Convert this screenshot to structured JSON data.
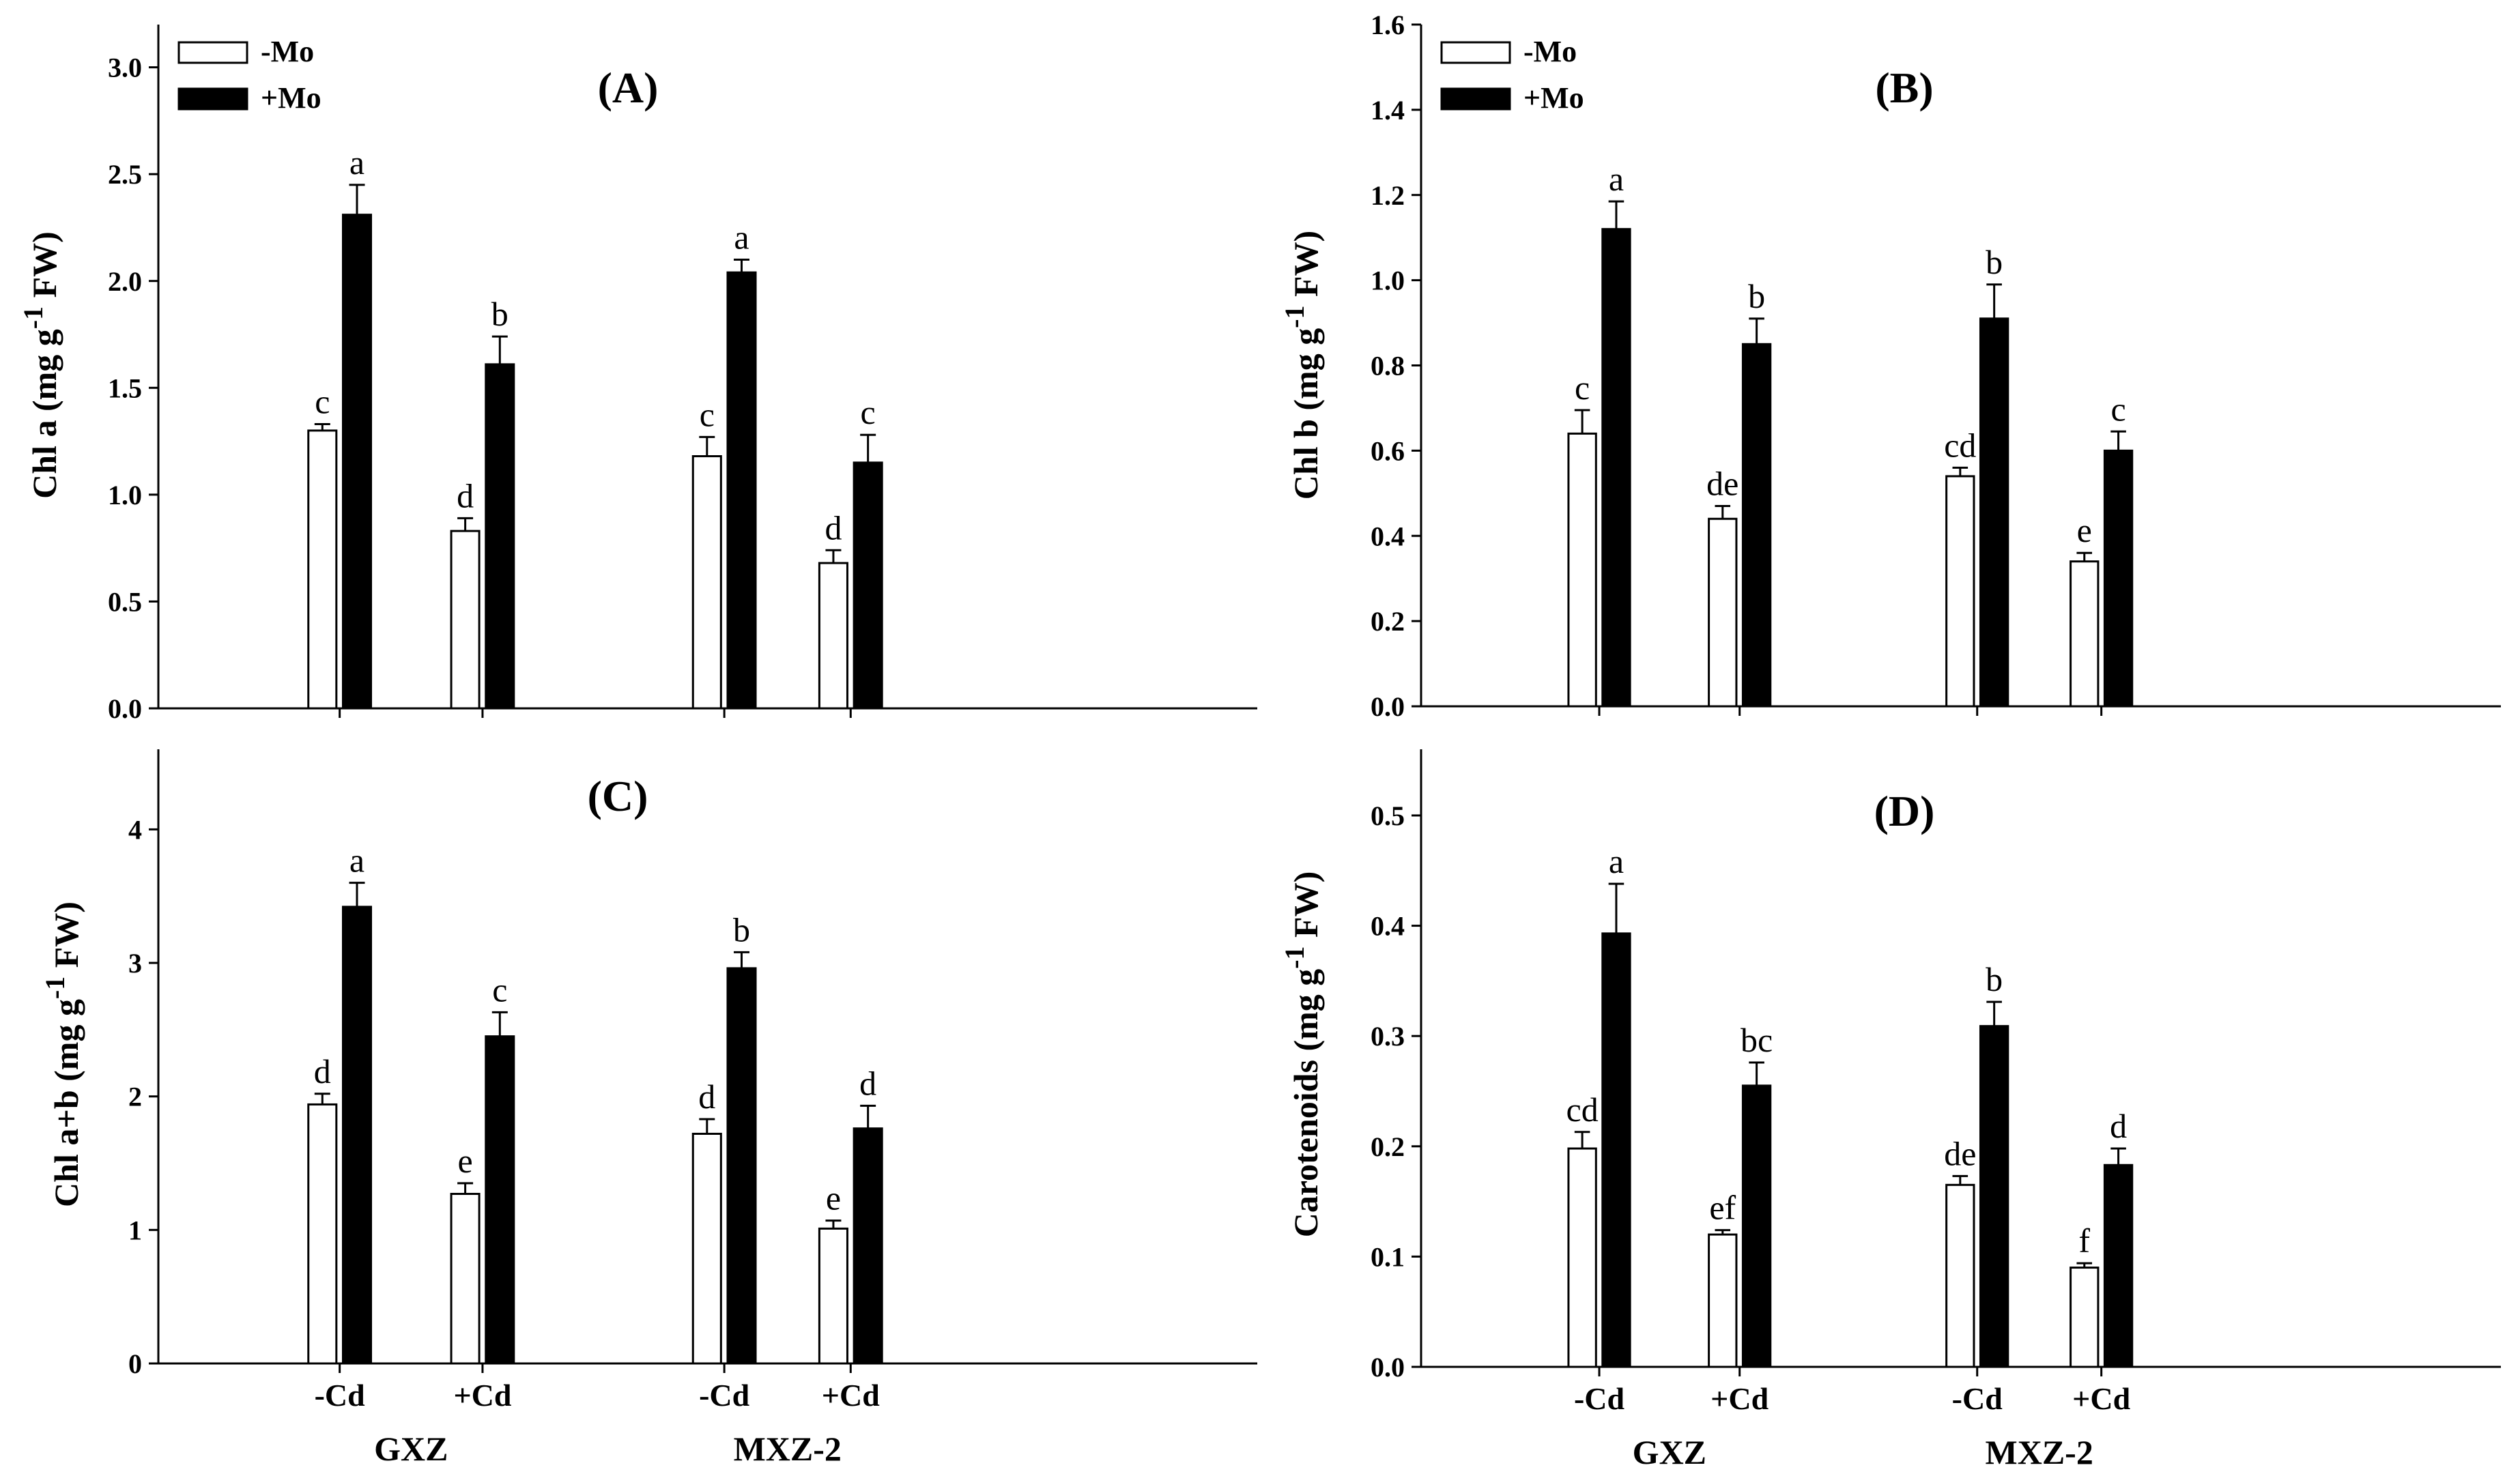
{
  "figure": {
    "background": "#ffffff",
    "bar_empty": "#ffffff",
    "bar_filled": "#000000",
    "stroke": "#000000"
  },
  "chart_data": [
    {
      "type": "bar",
      "title": "(A)",
      "ylabel_main": "Chl a (mg g",
      "ylabel_sup": "-1",
      "ylabel_tail": " FW)",
      "ylim": [
        0,
        3.2
      ],
      "yticks": [
        "0.0",
        "0.5",
        "1.0",
        "1.5",
        "2.0",
        "2.5",
        "3.0"
      ],
      "ytick_values": [
        0,
        0.5,
        1.0,
        1.5,
        2.0,
        2.5,
        3.0
      ],
      "categories": [
        "-Cd",
        "+Cd",
        "-Cd",
        "+Cd"
      ],
      "show_category_labels": false,
      "groups": [
        "GXZ",
        "MXZ-2"
      ],
      "show_group_labels": false,
      "legend": [
        "-Mo",
        "+Mo"
      ],
      "show_legend": true,
      "series": [
        {
          "name": "-Mo",
          "values": [
            1.3,
            0.83,
            1.18,
            0.68
          ],
          "errors": [
            0.03,
            0.06,
            0.09,
            0.06
          ],
          "letters": [
            "c",
            "d",
            "c",
            "d"
          ]
        },
        {
          "name": "+Mo",
          "values": [
            2.31,
            1.61,
            2.04,
            1.15
          ],
          "errors": [
            0.14,
            0.13,
            0.06,
            0.13
          ],
          "letters": [
            "a",
            "b",
            "a",
            "c"
          ]
        }
      ]
    },
    {
      "type": "bar",
      "title": "(B)",
      "ylabel_main": "Chl b (mg g",
      "ylabel_sup": "-1",
      "ylabel_tail": " FW)",
      "ylim": [
        0,
        1.6
      ],
      "yticks": [
        "0.0",
        "0.2",
        "0.4",
        "0.6",
        "0.8",
        "1.0",
        "1.2",
        "1.4",
        "1.6"
      ],
      "ytick_values": [
        0,
        0.2,
        0.4,
        0.6,
        0.8,
        1.0,
        1.2,
        1.4,
        1.6
      ],
      "categories": [
        "-Cd",
        "+Cd",
        "-Cd",
        "+Cd"
      ],
      "show_category_labels": false,
      "groups": [
        "GXZ",
        "MXZ-2"
      ],
      "show_group_labels": false,
      "legend": [
        "-Mo",
        "+Mo"
      ],
      "show_legend": true,
      "series": [
        {
          "name": "-Mo",
          "values": [
            0.64,
            0.44,
            0.54,
            0.34
          ],
          "errors": [
            0.055,
            0.03,
            0.02,
            0.02
          ],
          "letters": [
            "c",
            "de",
            "cd",
            "e"
          ]
        },
        {
          "name": "+Mo",
          "values": [
            1.12,
            0.85,
            0.91,
            0.6
          ],
          "errors": [
            0.065,
            0.06,
            0.08,
            0.045
          ],
          "letters": [
            "a",
            "b",
            "b",
            "c"
          ]
        }
      ]
    },
    {
      "type": "bar",
      "title": "(C)",
      "ylabel_main": "Chl a+b (mg g",
      "ylabel_sup": "-1",
      "ylabel_tail": " FW)",
      "ylim": [
        0,
        4.6
      ],
      "yticks": [
        "0",
        "1",
        "2",
        "3",
        "4"
      ],
      "ytick_values": [
        0,
        1,
        2,
        3,
        4
      ],
      "categories": [
        "-Cd",
        "+Cd",
        "-Cd",
        "+Cd"
      ],
      "show_category_labels": true,
      "groups": [
        "GXZ",
        "MXZ-2"
      ],
      "show_group_labels": true,
      "legend": [
        "-Mo",
        "+Mo"
      ],
      "show_legend": false,
      "series": [
        {
          "name": "-Mo",
          "values": [
            1.94,
            1.27,
            1.72,
            1.01
          ],
          "errors": [
            0.08,
            0.08,
            0.11,
            0.06
          ],
          "letters": [
            "d",
            "e",
            "d",
            "e"
          ]
        },
        {
          "name": "+Mo",
          "values": [
            3.42,
            2.45,
            2.96,
            1.76
          ],
          "errors": [
            0.18,
            0.18,
            0.12,
            0.17
          ],
          "letters": [
            "a",
            "c",
            "b",
            "d"
          ]
        }
      ]
    },
    {
      "type": "bar",
      "title": "(D)",
      "ylabel_main": "Carotenoids (mg g",
      "ylabel_sup": "-1",
      "ylabel_tail": " FW)",
      "ylim": [
        0,
        0.56
      ],
      "yticks": [
        "0.0",
        "0.1",
        "0.2",
        "0.3",
        "0.4",
        "0.5"
      ],
      "ytick_values": [
        0,
        0.1,
        0.2,
        0.3,
        0.4,
        0.5
      ],
      "categories": [
        "-Cd",
        "+Cd",
        "-Cd",
        "+Cd"
      ],
      "show_category_labels": true,
      "groups": [
        "GXZ",
        "MXZ-2"
      ],
      "show_group_labels": true,
      "legend": [
        "-Mo",
        "+Mo"
      ],
      "show_legend": false,
      "series": [
        {
          "name": "-Mo",
          "values": [
            0.198,
            0.12,
            0.165,
            0.09
          ],
          "errors": [
            0.015,
            0.004,
            0.008,
            0.004
          ],
          "letters": [
            "cd",
            "ef",
            "de",
            "f"
          ]
        },
        {
          "name": "+Mo",
          "values": [
            0.393,
            0.255,
            0.309,
            0.183
          ],
          "errors": [
            0.045,
            0.021,
            0.022,
            0.015
          ],
          "letters": [
            "a",
            "bc",
            "b",
            "d"
          ]
        }
      ]
    }
  ]
}
